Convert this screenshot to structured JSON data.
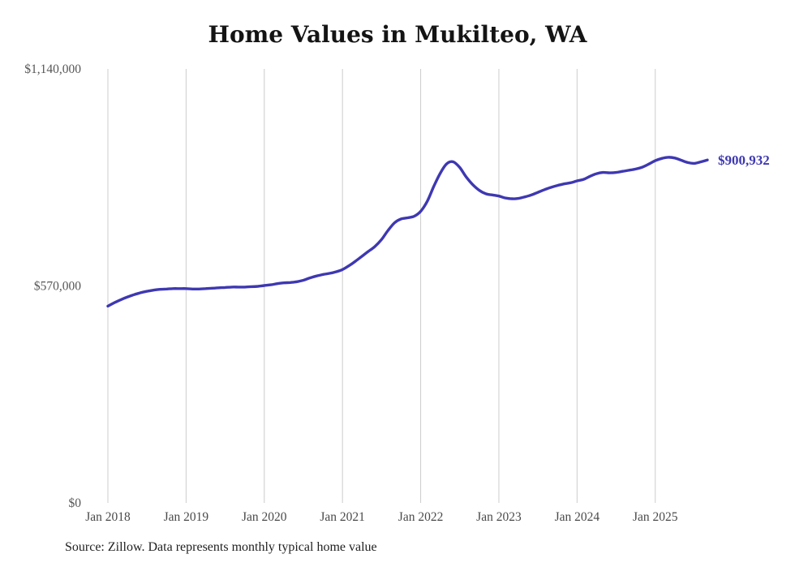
{
  "page": {
    "title": "Home Values in Mukilteo, WA",
    "source_note": "Source: Zillow. Data represents monthly typical home value"
  },
  "chart_data": {
    "type": "line",
    "title": "Home Values in Mukilteo, WA",
    "series_name": "Monthly typical home value",
    "x_unit": "month",
    "x_start": "2018-01",
    "x_end": "2025-09",
    "x_tick_labels": [
      "Jan 2018",
      "Jan 2019",
      "Jan 2020",
      "Jan 2021",
      "Jan 2022",
      "Jan 2023",
      "Jan 2024",
      "Jan 2025"
    ],
    "x_tick_positions": [
      0,
      12,
      24,
      36,
      48,
      60,
      72,
      84
    ],
    "y_tick_labels": [
      "$0",
      "$570,000",
      "$1,140,000"
    ],
    "y_tick_values": [
      0,
      570000,
      1140000
    ],
    "ylim": [
      0,
      1140000
    ],
    "grid": "vertical-only",
    "legend": "none",
    "line_color": "#3e38b2",
    "end_label": "$900,932",
    "end_value": 900932,
    "values": [
      517000,
      526000,
      534000,
      541000,
      547000,
      552000,
      556000,
      559000,
      561000,
      562000,
      563000,
      563000,
      563000,
      562000,
      562000,
      563000,
      564000,
      565000,
      566000,
      567000,
      567000,
      567000,
      568000,
      569000,
      571000,
      573000,
      576000,
      578000,
      579000,
      581000,
      585000,
      591000,
      596000,
      600000,
      603000,
      607000,
      613000,
      623000,
      635000,
      648000,
      661000,
      674000,
      692000,
      716000,
      736000,
      746000,
      749000,
      753000,
      766000,
      792000,
      831000,
      866000,
      891000,
      896000,
      881000,
      856000,
      836000,
      821000,
      812000,
      809000,
      806000,
      801000,
      799000,
      800000,
      804000,
      809000,
      816000,
      823000,
      829000,
      834000,
      838000,
      841000,
      846000,
      850000,
      858000,
      865000,
      868000,
      867000,
      868000,
      871000,
      874000,
      877000,
      882000,
      890000,
      899000,
      905000,
      908000,
      906000,
      900000,
      894000,
      892000,
      896000,
      900932
    ]
  }
}
